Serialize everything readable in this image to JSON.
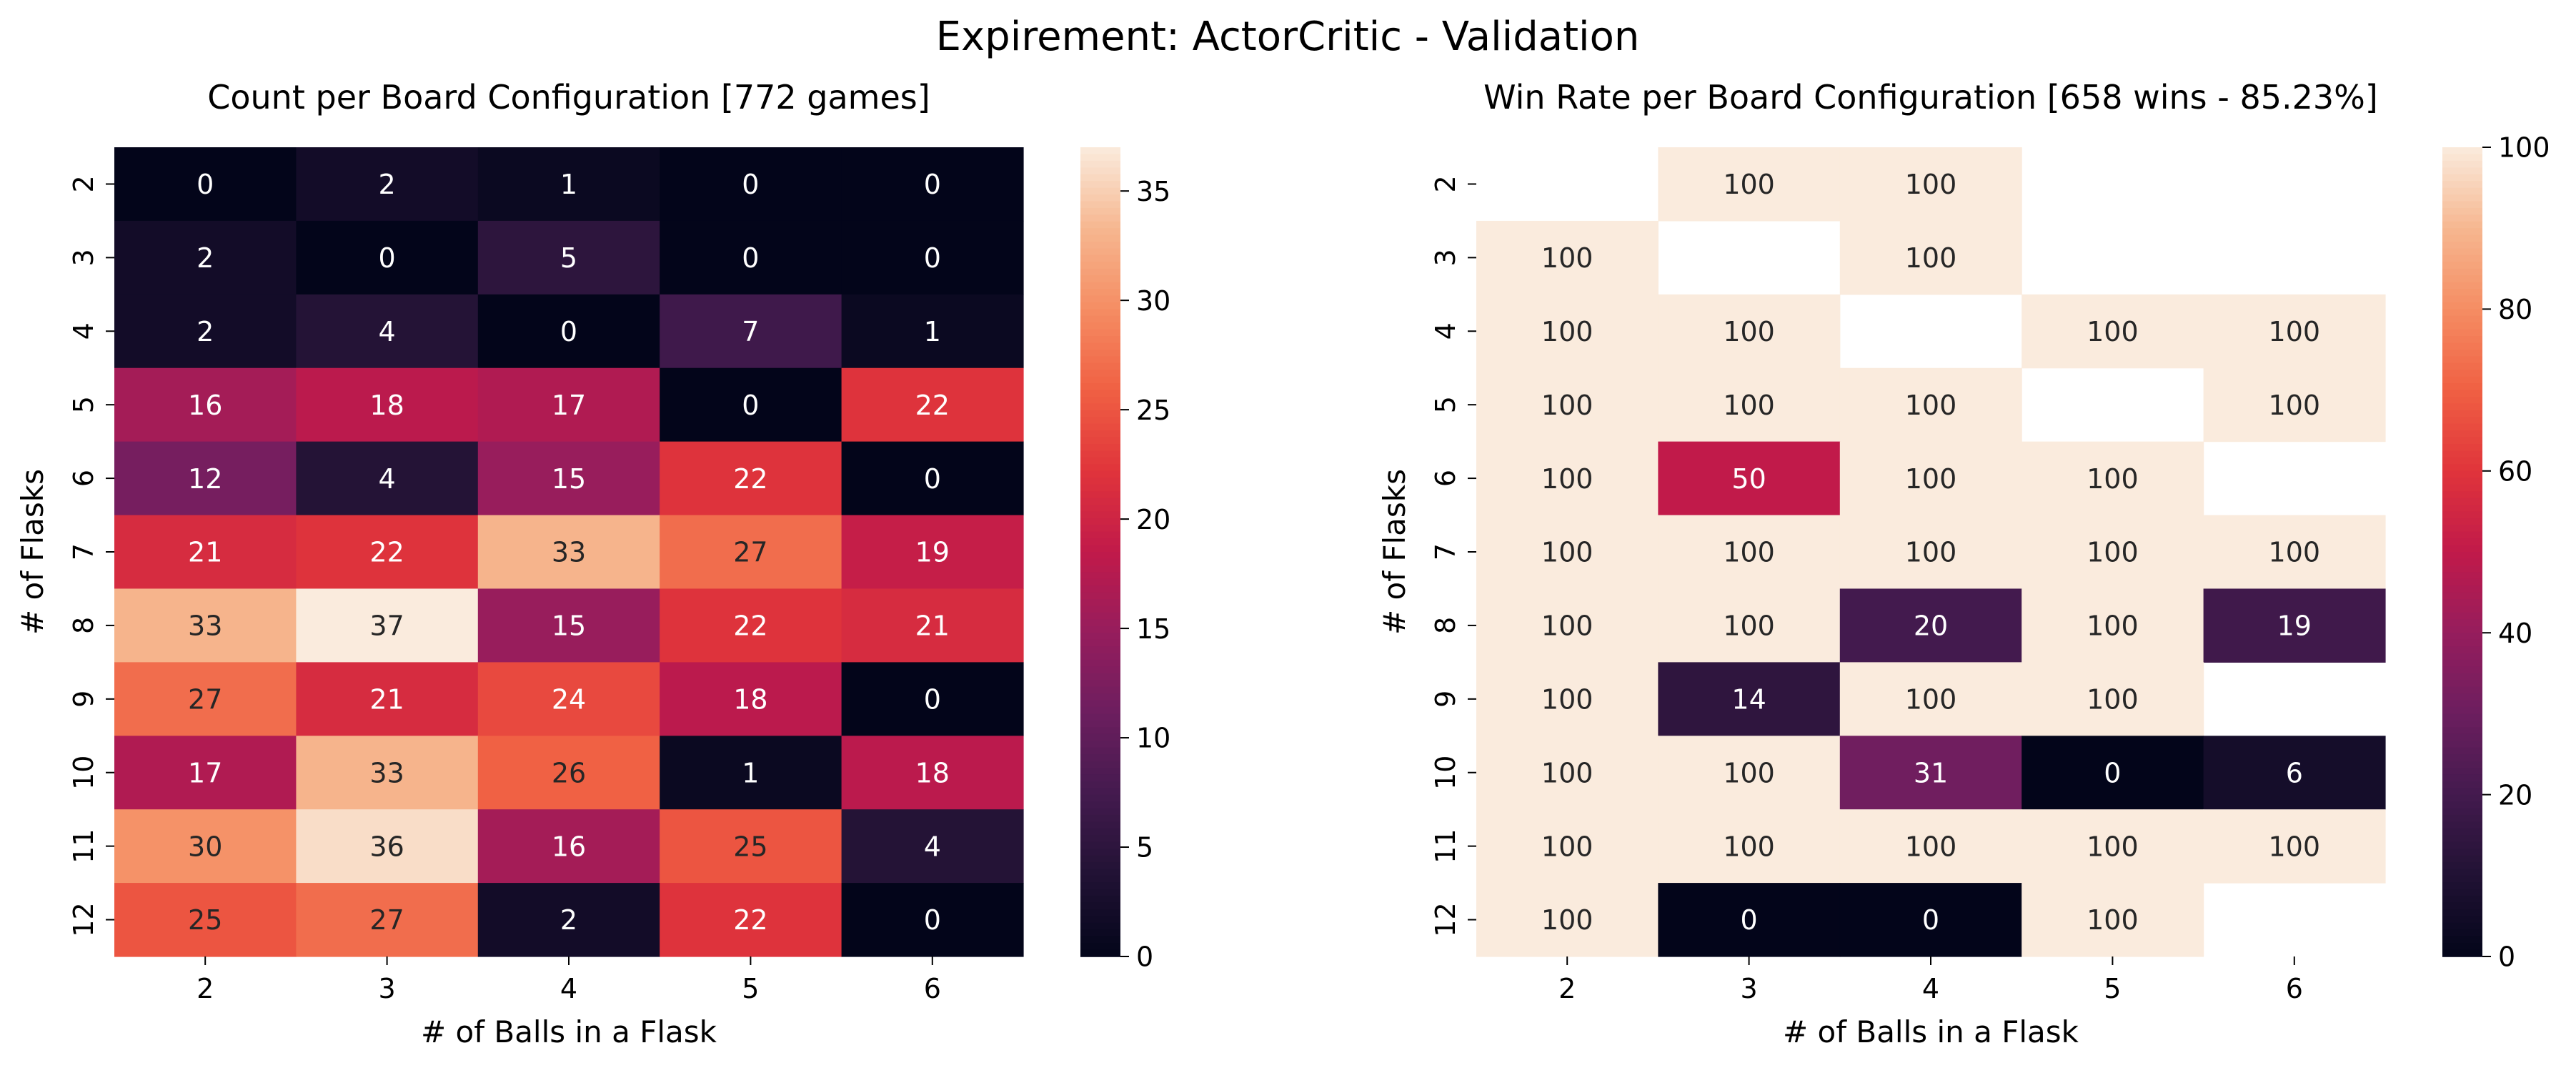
{
  "suptitle": "Expirement: ActorCritic - Validation",
  "chart_data": [
    {
      "type": "heatmap",
      "title": "Count per Board Configuration [772 games]",
      "xlabel": "# of Balls in a Flask",
      "ylabel": "# of Flasks",
      "x_categories": [
        "2",
        "3",
        "4",
        "5",
        "6"
      ],
      "y_categories": [
        "2",
        "3",
        "4",
        "5",
        "6",
        "7",
        "8",
        "9",
        "10",
        "11",
        "12"
      ],
      "values": [
        [
          0,
          2,
          1,
          0,
          0
        ],
        [
          2,
          0,
          5,
          0,
          0
        ],
        [
          2,
          4,
          0,
          7,
          1
        ],
        [
          16,
          18,
          17,
          0,
          22
        ],
        [
          12,
          4,
          15,
          22,
          0
        ],
        [
          21,
          22,
          33,
          27,
          19
        ],
        [
          33,
          37,
          15,
          22,
          21
        ],
        [
          27,
          21,
          24,
          18,
          0
        ],
        [
          17,
          33,
          26,
          1,
          18
        ],
        [
          30,
          36,
          16,
          25,
          4
        ],
        [
          25,
          27,
          2,
          22,
          0
        ]
      ],
      "vmin": 0,
      "vmax": 37,
      "colorbar_ticks": [
        0,
        5,
        10,
        15,
        20,
        25,
        30,
        35
      ],
      "colormap": "rocket"
    },
    {
      "type": "heatmap",
      "title": "Win Rate per Board Configuration [658 wins - 85.23%]",
      "xlabel": "# of Balls in a Flask",
      "ylabel": "# of Flasks",
      "x_categories": [
        "2",
        "3",
        "4",
        "5",
        "6"
      ],
      "y_categories": [
        "2",
        "3",
        "4",
        "5",
        "6",
        "7",
        "8",
        "9",
        "10",
        "11",
        "12"
      ],
      "values": [
        [
          null,
          100,
          100,
          null,
          null
        ],
        [
          100,
          null,
          100,
          null,
          null
        ],
        [
          100,
          100,
          null,
          100,
          100
        ],
        [
          100,
          100,
          100,
          null,
          100
        ],
        [
          100,
          50,
          100,
          100,
          null
        ],
        [
          100,
          100,
          100,
          100,
          100
        ],
        [
          100,
          100,
          20,
          100,
          19
        ],
        [
          100,
          14,
          100,
          100,
          null
        ],
        [
          100,
          100,
          31,
          0,
          6
        ],
        [
          100,
          100,
          100,
          100,
          100
        ],
        [
          100,
          0,
          0,
          100,
          null
        ]
      ],
      "vmin": 0,
      "vmax": 100,
      "colorbar_ticks": [
        0,
        20,
        40,
        60,
        80,
        100
      ],
      "colormap": "rocket"
    }
  ]
}
